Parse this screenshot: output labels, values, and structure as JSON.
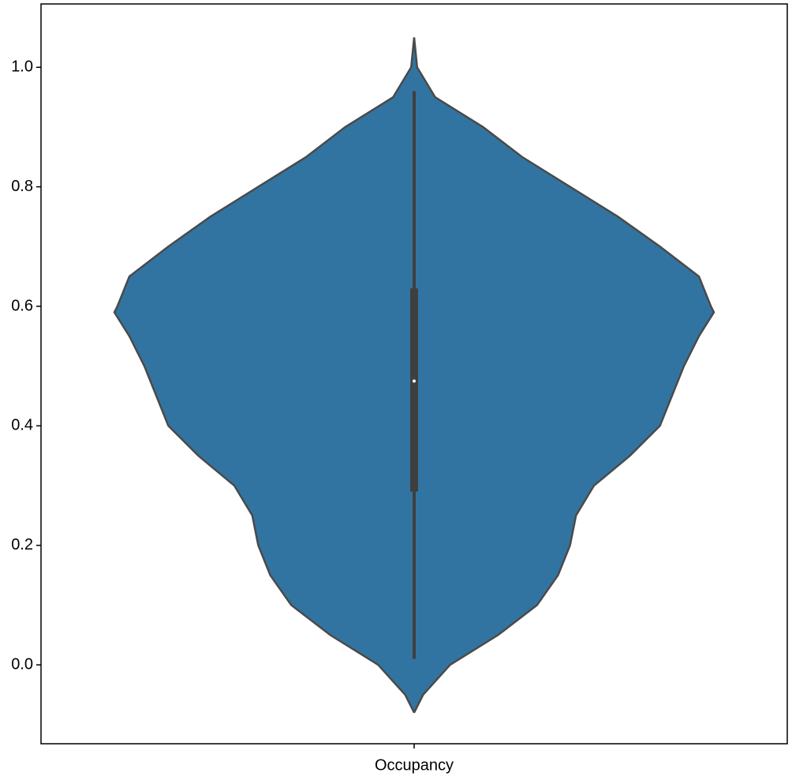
{
  "chart_data": {
    "type": "violin",
    "categories": [
      "Occupancy"
    ],
    "color": "#3274a1",
    "ylim": [
      -0.132,
      1.106
    ],
    "yticks": [
      {
        "value": 0,
        "label": "0.0"
      },
      {
        "value": 0.2,
        "label": "0.2"
      },
      {
        "value": 0.4,
        "label": "0.4"
      },
      {
        "value": 0.6,
        "label": "0.6"
      },
      {
        "value": 0.8,
        "label": "0.8"
      },
      {
        "value": 1,
        "label": "1.0"
      }
    ],
    "density_y": [
      1.05,
      1.0,
      0.95,
      0.9,
      0.85,
      0.8,
      0.75,
      0.7,
      0.65,
      0.6,
      0.59,
      0.55,
      0.5,
      0.45,
      0.4,
      0.35,
      0.3,
      0.25,
      0.2,
      0.15,
      0.1,
      0.05,
      0.0,
      -0.05,
      -0.08
    ],
    "density_width": [
      0,
      0.01,
      0.07,
      0.23,
      0.36,
      0.52,
      0.68,
      0.82,
      0.95,
      0.99,
      1.0,
      0.95,
      0.9,
      0.86,
      0.82,
      0.72,
      0.6,
      0.54,
      0.52,
      0.48,
      0.41,
      0.28,
      0.12,
      0.03,
      0
    ],
    "whisker_low": 0.01,
    "q1": 0.29,
    "median": 0.475,
    "q3": 0.63,
    "whisker_high": 0.96
  }
}
